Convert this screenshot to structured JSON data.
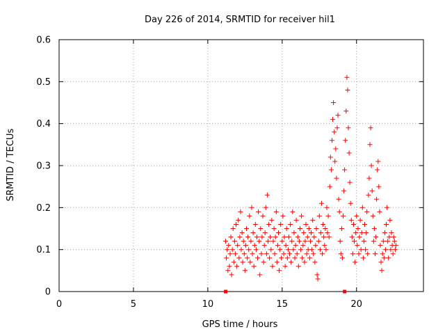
{
  "chart_data": {
    "type": "scatter",
    "title": "Day 226 of 2014, SRMTID for receiver hil1",
    "xlabel": "GPS time / hours",
    "ylabel": "SRMTID / TECUs",
    "xlim": [
      0,
      24.5
    ],
    "ylim": [
      0,
      0.6
    ],
    "xticks": [
      0,
      5,
      10,
      15,
      20
    ],
    "xtick_labels": [
      "0",
      "5",
      "10",
      "15",
      "20"
    ],
    "yticks": [
      0,
      0.1,
      0.2,
      0.3,
      0.4,
      0.5,
      0.6
    ],
    "ytick_labels": [
      "0",
      "0.1",
      "0.2",
      "0.3",
      "0.4",
      "0.5",
      "0.6"
    ],
    "grid": true,
    "marker": "+",
    "color": "#ff0000",
    "series": [
      {
        "name": "hil1",
        "points": [
          [
            11.2,
            0.12
          ],
          [
            11.25,
            0.08
          ],
          [
            11.3,
            0.1
          ],
          [
            11.35,
            0.05
          ],
          [
            11.4,
            0.11
          ],
          [
            11.45,
            0.06
          ],
          [
            11.5,
            0.09
          ],
          [
            11.55,
            0.13
          ],
          [
            11.6,
            0.04
          ],
          [
            11.65,
            0.1
          ],
          [
            11.7,
            0.15
          ],
          [
            11.75,
            0.07
          ],
          [
            11.8,
            0.12
          ],
          [
            11.85,
            0.09
          ],
          [
            11.9,
            0.16
          ],
          [
            11.95,
            0.06
          ],
          [
            12.0,
            0.11
          ],
          [
            12.05,
            0.17
          ],
          [
            12.1,
            0.08
          ],
          [
            12.15,
            0.13
          ],
          [
            12.2,
            0.19
          ],
          [
            12.25,
            0.1
          ],
          [
            12.3,
            0.14
          ],
          [
            12.35,
            0.07
          ],
          [
            12.4,
            0.12
          ],
          [
            12.45,
            0.09
          ],
          [
            12.5,
            0.05
          ],
          [
            12.55,
            0.11
          ],
          [
            12.6,
            0.15
          ],
          [
            12.65,
            0.08
          ],
          [
            12.7,
            0.13
          ],
          [
            12.75,
            0.1
          ],
          [
            12.8,
            0.18
          ],
          [
            12.85,
            0.07
          ],
          [
            12.9,
            0.12
          ],
          [
            12.95,
            0.2
          ],
          [
            13.0,
            0.09
          ],
          [
            13.05,
            0.14
          ],
          [
            13.1,
            0.06
          ],
          [
            13.15,
            0.11
          ],
          [
            13.2,
            0.16
          ],
          [
            13.25,
            0.1
          ],
          [
            13.3,
            0.13
          ],
          [
            13.35,
            0.08
          ],
          [
            13.4,
            0.19
          ],
          [
            13.45,
            0.12
          ],
          [
            13.5,
            0.04
          ],
          [
            13.55,
            0.15
          ],
          [
            13.6,
            0.09
          ],
          [
            13.65,
            0.13
          ],
          [
            13.7,
            0.18
          ],
          [
            13.75,
            0.07
          ],
          [
            13.8,
            0.11
          ],
          [
            13.85,
            0.14
          ],
          [
            13.9,
            0.2
          ],
          [
            13.95,
            0.09
          ],
          [
            14.0,
            0.23
          ],
          [
            14.05,
            0.12
          ],
          [
            14.1,
            0.16
          ],
          [
            14.15,
            0.08
          ],
          [
            14.2,
            0.13
          ],
          [
            14.25,
            0.1
          ],
          [
            14.3,
            0.17
          ],
          [
            14.35,
            0.06
          ],
          [
            14.4,
            0.12
          ],
          [
            14.45,
            0.15
          ],
          [
            14.5,
            0.09
          ],
          [
            14.55,
            0.13
          ],
          [
            14.6,
            0.19
          ],
          [
            14.65,
            0.07
          ],
          [
            14.7,
            0.11
          ],
          [
            14.75,
            0.14
          ],
          [
            14.8,
            0.05
          ],
          [
            14.85,
            0.1
          ],
          [
            14.9,
            0.16
          ],
          [
            14.95,
            0.08
          ],
          [
            15.0,
            0.12
          ],
          [
            15.05,
            0.18
          ],
          [
            15.1,
            0.09
          ],
          [
            15.15,
            0.13
          ],
          [
            15.2,
            0.06
          ],
          [
            15.25,
            0.11
          ],
          [
            15.3,
            0.15
          ],
          [
            15.35,
            0.08
          ],
          [
            15.4,
            0.1
          ],
          [
            15.45,
            0.13
          ],
          [
            15.5,
            0.09
          ],
          [
            15.55,
            0.16
          ],
          [
            15.6,
            0.07
          ],
          [
            15.65,
            0.12
          ],
          [
            15.7,
            0.19
          ],
          [
            15.75,
            0.1
          ],
          [
            15.8,
            0.14
          ],
          [
            15.85,
            0.08
          ],
          [
            15.9,
            0.11
          ],
          [
            15.95,
            0.17
          ],
          [
            16.0,
            0.09
          ],
          [
            16.05,
            0.13
          ],
          [
            16.1,
            0.06
          ],
          [
            16.15,
            0.12
          ],
          [
            16.2,
            0.15
          ],
          [
            16.25,
            0.1
          ],
          [
            16.3,
            0.18
          ],
          [
            16.35,
            0.08
          ],
          [
            16.4,
            0.11
          ],
          [
            16.45,
            0.14
          ],
          [
            16.5,
            0.07
          ],
          [
            16.55,
            0.12
          ],
          [
            16.6,
            0.16
          ],
          [
            16.65,
            0.09
          ],
          [
            16.7,
            0.13
          ],
          [
            16.75,
            0.1
          ],
          [
            16.8,
            0.15
          ],
          [
            16.85,
            0.08
          ],
          [
            16.9,
            0.12
          ],
          [
            16.95,
            0.14
          ],
          [
            17.0,
            0.1
          ],
          [
            17.05,
            0.17
          ],
          [
            17.1,
            0.09
          ],
          [
            17.15,
            0.13
          ],
          [
            17.2,
            0.07
          ],
          [
            17.25,
            0.11
          ],
          [
            17.3,
            0.15
          ],
          [
            17.35,
            0.04
          ],
          [
            17.4,
            0.03
          ],
          [
            17.45,
            0.12
          ],
          [
            17.5,
            0.18
          ],
          [
            17.55,
            0.1
          ],
          [
            17.6,
            0.14
          ],
          [
            17.65,
            0.21
          ],
          [
            17.7,
            0.09
          ],
          [
            17.75,
            0.16
          ],
          [
            17.8,
            0.13
          ],
          [
            17.85,
            0.11
          ],
          [
            17.9,
            0.15
          ],
          [
            17.95,
            0.1
          ],
          [
            18.0,
            0.2
          ],
          [
            18.05,
            0.14
          ],
          [
            18.1,
            0.18
          ],
          [
            18.15,
            0.13
          ],
          [
            18.2,
            0.25
          ],
          [
            18.25,
            0.32
          ],
          [
            18.3,
            0.29
          ],
          [
            18.35,
            0.36
          ],
          [
            18.4,
            0.41
          ],
          [
            18.45,
            0.45
          ],
          [
            18.5,
            0.38
          ],
          [
            18.55,
            0.31
          ],
          [
            18.6,
            0.34
          ],
          [
            18.65,
            0.27
          ],
          [
            18.7,
            0.39
          ],
          [
            18.75,
            0.42
          ],
          [
            18.8,
            0.22
          ],
          [
            18.85,
            0.19
          ],
          [
            18.9,
            0.12
          ],
          [
            18.95,
            0.09
          ],
          [
            19.0,
            0.15
          ],
          [
            19.05,
            0.08
          ],
          [
            19.1,
            0.18
          ],
          [
            19.15,
            0.24
          ],
          [
            19.2,
            0.29
          ],
          [
            19.25,
            0.36
          ],
          [
            19.3,
            0.43
          ],
          [
            19.35,
            0.51
          ],
          [
            19.4,
            0.48
          ],
          [
            19.45,
            0.39
          ],
          [
            19.5,
            0.33
          ],
          [
            19.55,
            0.26
          ],
          [
            19.6,
            0.21
          ],
          [
            19.65,
            0.17
          ],
          [
            19.7,
            0.13
          ],
          [
            19.75,
            0.09
          ],
          [
            19.8,
            0.16
          ],
          [
            19.85,
            0.12
          ],
          [
            19.9,
            0.07
          ],
          [
            19.95,
            0.14
          ],
          [
            20.0,
            0.18
          ],
          [
            20.05,
            0.11
          ],
          [
            20.1,
            0.15
          ],
          [
            20.15,
            0.09
          ],
          [
            20.2,
            0.13
          ],
          [
            20.25,
            0.17
          ],
          [
            20.3,
            0.1
          ],
          [
            20.35,
            0.14
          ],
          [
            20.4,
            0.2
          ],
          [
            20.45,
            0.08
          ],
          [
            20.5,
            0.12
          ],
          [
            20.55,
            0.16
          ],
          [
            20.6,
            0.1
          ],
          [
            20.65,
            0.14
          ],
          [
            20.7,
            0.19
          ],
          [
            20.75,
            0.09
          ],
          [
            20.8,
            0.23
          ],
          [
            20.85,
            0.27
          ],
          [
            20.9,
            0.35
          ],
          [
            20.95,
            0.39
          ],
          [
            21.0,
            0.3
          ],
          [
            21.05,
            0.24
          ],
          [
            21.1,
            0.18
          ],
          [
            21.15,
            0.12
          ],
          [
            21.2,
            0.15
          ],
          [
            21.25,
            0.09
          ],
          [
            21.3,
            0.13
          ],
          [
            21.35,
            0.22
          ],
          [
            21.4,
            0.29
          ],
          [
            21.45,
            0.31
          ],
          [
            21.5,
            0.25
          ],
          [
            21.55,
            0.19
          ],
          [
            21.6,
            0.11
          ],
          [
            21.65,
            0.07
          ],
          [
            21.7,
            0.05
          ],
          [
            21.75,
            0.09
          ],
          [
            21.8,
            0.12
          ],
          [
            21.85,
            0.08
          ],
          [
            21.9,
            0.14
          ],
          [
            21.95,
            0.1
          ],
          [
            22.0,
            0.16
          ],
          [
            22.05,
            0.2
          ],
          [
            22.1,
            0.12
          ],
          [
            22.15,
            0.08
          ],
          [
            22.2,
            0.13
          ],
          [
            22.25,
            0.17
          ],
          [
            22.3,
            0.1
          ],
          [
            22.35,
            0.14
          ],
          [
            22.4,
            0.11
          ],
          [
            22.45,
            0.09
          ],
          [
            22.5,
            0.13
          ],
          [
            22.55,
            0.12
          ],
          [
            22.6,
            0.1
          ],
          [
            22.65,
            0.11
          ]
        ]
      }
    ],
    "baseline_markers": [
      11.2,
      19.2
    ]
  }
}
